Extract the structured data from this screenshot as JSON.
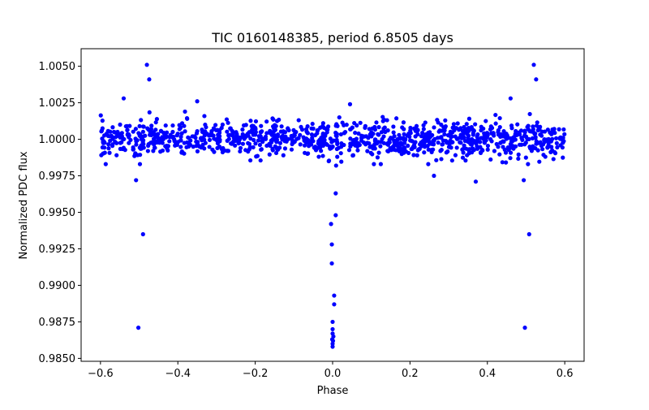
{
  "chart_data": {
    "type": "scatter",
    "title": "TIC 0160148385, period 6.8505 days",
    "xlabel": "Phase",
    "ylabel": "Normalized PDC flux",
    "xlim": [
      -0.65,
      0.65
    ],
    "ylim": [
      0.9848,
      1.0062
    ],
    "x_ticks": [
      -0.6,
      -0.4,
      -0.2,
      0.0,
      0.2,
      0.4,
      0.6
    ],
    "x_tick_labels": [
      "−0.6",
      "−0.4",
      "−0.2",
      "0.0",
      "0.2",
      "0.4",
      "0.6"
    ],
    "y_ticks": [
      0.985,
      0.9875,
      0.99,
      0.9925,
      0.995,
      0.9975,
      1.0,
      1.0025,
      1.005
    ],
    "y_tick_labels": [
      "0.9850",
      "0.9875",
      "0.9900",
      "0.9925",
      "0.9950",
      "0.9975",
      "1.0000",
      "1.0025",
      "1.0050"
    ],
    "grid": false,
    "marker_color": "#0000ff",
    "series": [
      {
        "name": "flux",
        "baseline_points": {
          "description": "dense cloud of points around flux 1.0000 with scatter of about 0.0006, spanning phase -0.60 to 0.60",
          "x_range": [
            -0.6,
            0.6
          ],
          "center": 1.0,
          "spread": 0.0006,
          "count": 1100
        },
        "points": [
          {
            "x": 0.0,
            "y": 0.9858
          },
          {
            "x": 0.0,
            "y": 0.986
          },
          {
            "x": 0.001,
            "y": 0.9862
          },
          {
            "x": -0.001,
            "y": 0.9863
          },
          {
            "x": 0.002,
            "y": 0.9865
          },
          {
            "x": 0.0,
            "y": 0.9867
          },
          {
            "x": 0.0,
            "y": 0.987
          },
          {
            "x": 0.0,
            "y": 0.9875
          },
          {
            "x": 0.004,
            "y": 0.9887
          },
          {
            "x": 0.004,
            "y": 0.9893
          },
          {
            "x": -0.002,
            "y": 0.9915
          },
          {
            "x": -0.002,
            "y": 0.9928
          },
          {
            "x": -0.004,
            "y": 0.9942
          },
          {
            "x": 0.008,
            "y": 0.9948
          },
          {
            "x": 0.008,
            "y": 0.9963
          },
          {
            "x": 0.009,
            "y": 0.9982
          },
          {
            "x": -0.01,
            "y": 0.9985
          },
          {
            "x": 0.012,
            "y": 0.9988
          },
          {
            "x": -0.502,
            "y": 0.9871
          },
          {
            "x": -0.49,
            "y": 0.9935
          },
          {
            "x": -0.508,
            "y": 0.9972
          },
          {
            "x": -0.48,
            "y": 1.0051
          },
          {
            "x": -0.474,
            "y": 1.0041
          },
          {
            "x": -0.498,
            "y": 0.9983
          },
          {
            "x": 0.497,
            "y": 0.9871
          },
          {
            "x": 0.508,
            "y": 0.9935
          },
          {
            "x": 0.494,
            "y": 0.9972
          },
          {
            "x": 0.52,
            "y": 1.0051
          },
          {
            "x": 0.526,
            "y": 1.0041
          },
          {
            "x": 0.505,
            "y": 0.9983
          },
          {
            "x": 0.262,
            "y": 0.9975
          },
          {
            "x": 0.37,
            "y": 0.9971
          },
          {
            "x": -0.35,
            "y": 1.0026
          },
          {
            "x": 0.46,
            "y": 1.0028
          },
          {
            "x": -0.54,
            "y": 1.0028
          },
          {
            "x": 0.045,
            "y": 1.0024
          }
        ]
      }
    ]
  }
}
